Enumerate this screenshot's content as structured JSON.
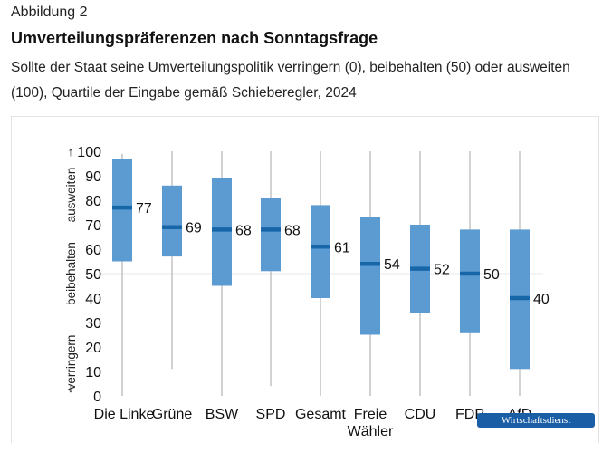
{
  "header": {
    "kicker": "Abbildung 2",
    "title": "Umverteilungspräferenzen nach Sonntagsfrage",
    "subtitle": "Sollte der Staat seine Umverteilungspolitik verringern (0), beibehalten (50) oder ausweiten (100), Quartile der Eingabe gemäß Schieberegler, 2024"
  },
  "badge": "Wirtschaftsdienst",
  "colors": {
    "box": "#5b9bd2",
    "median": "#1766a8",
    "whisker": "#b5b5b5",
    "grid": "#e9e9e9"
  },
  "chart_data": {
    "type": "box",
    "ylim": [
      0,
      100
    ],
    "yticks": [
      "0",
      "10",
      "20",
      "30",
      "40",
      "50",
      "60",
      "70",
      "80",
      "90",
      "100"
    ],
    "ylabel_parts": {
      "low": "verringern",
      "mid": "beibehalten",
      "high": "ausweiten"
    },
    "categories": [
      {
        "label": [
          "Die Linke"
        ],
        "min": 0,
        "q1": 55,
        "median": 77,
        "q3": 97,
        "max": 99
      },
      {
        "label": [
          "Grüne"
        ],
        "min": 11,
        "q1": 57,
        "median": 69,
        "q3": 86,
        "max": 100
      },
      {
        "label": [
          "BSW"
        ],
        "min": 0,
        "q1": 45,
        "median": 68,
        "q3": 89,
        "max": 100
      },
      {
        "label": [
          "SPD"
        ],
        "min": 4,
        "q1": 51,
        "median": 68,
        "q3": 81,
        "max": 100
      },
      {
        "label": [
          "Gesamt"
        ],
        "min": 0,
        "q1": 40,
        "median": 61,
        "q3": 78,
        "max": 100
      },
      {
        "label": [
          "Freie",
          "Wähler"
        ],
        "min": 0,
        "q1": 25,
        "median": 54,
        "q3": 73,
        "max": 100
      },
      {
        "label": [
          "CDU"
        ],
        "min": 0,
        "q1": 34,
        "median": 52,
        "q3": 70,
        "max": 100
      },
      {
        "label": [
          "FDP"
        ],
        "min": 0,
        "q1": 26,
        "median": 50,
        "q3": 68,
        "max": 100
      },
      {
        "label": [
          "AfD"
        ],
        "min": 0,
        "q1": 11,
        "median": 40,
        "q3": 68,
        "max": 100
      }
    ],
    "median_labels": [
      "77",
      "69",
      "68",
      "68",
      "61",
      "54",
      "52",
      "50",
      "40"
    ],
    "grid": "y=50 reference line only"
  }
}
